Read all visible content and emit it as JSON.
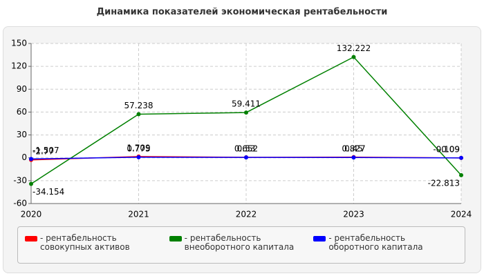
{
  "chart_data": {
    "type": "line",
    "title": "Динамика показателей экономическая рентабельности",
    "categories": [
      "2020",
      "2021",
      "2022",
      "2023",
      "2024"
    ],
    "series": [
      {
        "name": "рентабельность совокупных активов",
        "color": "#ff0000",
        "values": [
          -2.77,
          1.709,
          0.652,
          0.827,
          -0.109
        ]
      },
      {
        "name": "рентабельность внеоборотного капитала",
        "color": "#008000",
        "values": [
          -34.154,
          57.238,
          59.411,
          132.222,
          -22.813
        ]
      },
      {
        "name": "рентабельность оборотного капитала",
        "color": "#0000ff",
        "values": [
          -1.507,
          0.775,
          0.53,
          0.45,
          -0.09
        ]
      }
    ],
    "ylim": [
      -60,
      150
    ],
    "yticks": [
      -60,
      -30,
      0,
      30,
      60,
      90,
      120,
      150
    ],
    "grid": true
  }
}
